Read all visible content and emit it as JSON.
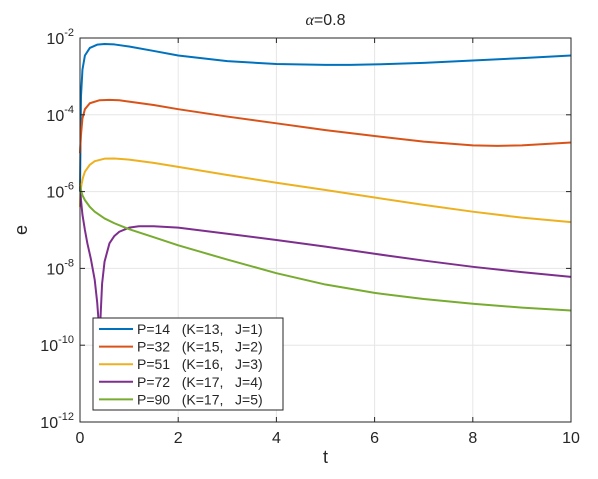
{
  "chart_data": {
    "type": "line",
    "title": "α=0.8",
    "xlabel": "t",
    "ylabel": "e",
    "xlim": [
      0,
      10
    ],
    "ylim": [
      1e-12,
      0.01
    ],
    "yscale": "log",
    "grid": true,
    "legend_position": "bottom-left",
    "x_ticks": [
      {
        "value": 0,
        "label": "0"
      },
      {
        "value": 2,
        "label": "2"
      },
      {
        "value": 4,
        "label": "4"
      },
      {
        "value": 6,
        "label": "6"
      },
      {
        "value": 8,
        "label": "8"
      },
      {
        "value": 10,
        "label": "10"
      }
    ],
    "y_ticks": [
      {
        "value": 1e-12,
        "base": "10",
        "exp": "-12"
      },
      {
        "value": 1e-10,
        "base": "10",
        "exp": "-10"
      },
      {
        "value": 1e-08,
        "base": "10",
        "exp": "-8"
      },
      {
        "value": 1e-06,
        "base": "10",
        "exp": "-6"
      },
      {
        "value": 0.0001,
        "base": "10",
        "exp": "-4"
      },
      {
        "value": 0.01,
        "base": "10",
        "exp": "-2"
      }
    ],
    "series": [
      {
        "name": "P=14   (K=13,   J=1)",
        "color": "#0072BD",
        "x": [
          0,
          0.02,
          0.05,
          0.1,
          0.2,
          0.35,
          0.5,
          0.7,
          1,
          1.5,
          2,
          3,
          4,
          5,
          5.5,
          6,
          7,
          8,
          9,
          10
        ],
        "y": [
          1e-06,
          0.0003,
          0.0015,
          0.0035,
          0.0055,
          0.0067,
          0.007,
          0.0068,
          0.006,
          0.0046,
          0.0035,
          0.0025,
          0.0021,
          0.002,
          0.002,
          0.00205,
          0.00225,
          0.0026,
          0.003,
          0.0035
        ]
      },
      {
        "name": "P=32   (K=15,   J=2)",
        "color": "#D95319",
        "x": [
          0,
          0.02,
          0.05,
          0.1,
          0.2,
          0.4,
          0.6,
          0.8,
          1,
          1.5,
          2,
          3,
          4,
          5,
          6,
          7,
          8,
          8.5,
          9,
          10
        ],
        "y": [
          1e-05,
          3e-05,
          8e-05,
          0.00014,
          0.0002,
          0.00024,
          0.000245,
          0.00024,
          0.00022,
          0.00018,
          0.00014,
          9e-05,
          6e-05,
          4e-05,
          2.8e-05,
          2e-05,
          1.6e-05,
          1.55e-05,
          1.6e-05,
          1.9e-05
        ]
      },
      {
        "name": "P=51   (K=16,   J=3)",
        "color": "#EDB120",
        "x": [
          0,
          0.01,
          0.03,
          0.06,
          0.1,
          0.2,
          0.3,
          0.5,
          0.7,
          1,
          1.5,
          2,
          3,
          4,
          5,
          6,
          7,
          8,
          9,
          10
        ],
        "y": [
          4e-07,
          1e-06,
          1.5e-06,
          2.3e-06,
          3.3e-06,
          5e-06,
          6.2e-06,
          7.2e-06,
          7.3e-06,
          6.8e-06,
          5.6e-06,
          4.4e-06,
          2.7e-06,
          1.7e-06,
          1.1e-06,
          7e-07,
          4.5e-07,
          3e-07,
          2.1e-07,
          1.6e-07
        ]
      },
      {
        "name": "P=72   (K=17,   J=4)",
        "color": "#7E2F8E",
        "x": [
          0,
          0.02,
          0.05,
          0.1,
          0.15,
          0.22,
          0.3,
          0.35,
          0.38,
          0.4,
          0.42,
          0.45,
          0.5,
          0.6,
          0.7,
          0.8,
          1,
          1.2,
          1.5,
          2,
          3,
          4,
          5,
          6,
          7,
          8,
          9,
          10
        ],
        "y": [
          1.5e-06,
          6e-07,
          2.5e-07,
          1e-07,
          4.5e-08,
          1.8e-08,
          5e-09,
          1.3e-09,
          4e-10,
          1.5e-10,
          6e-10,
          4e-09,
          1.5e-08,
          4.5e-08,
          7e-08,
          9e-08,
          1.15e-07,
          1.25e-07,
          1.25e-07,
          1.15e-07,
          8e-08,
          5.5e-08,
          3.7e-08,
          2.4e-08,
          1.6e-08,
          1.1e-08,
          8e-09,
          6e-09
        ]
      },
      {
        "name": "P=90   (K=17,   J=5)",
        "color": "#77AC30",
        "x": [
          0,
          0.02,
          0.05,
          0.1,
          0.2,
          0.3,
          0.5,
          0.7,
          1,
          1.5,
          2,
          2.5,
          3,
          4,
          5,
          6,
          7,
          8,
          9,
          10
        ],
        "y": [
          1.5e-06,
          1.1e-06,
          8e-07,
          6e-07,
          4e-07,
          3e-07,
          2e-07,
          1.5e-07,
          1.05e-07,
          6.5e-08,
          4e-08,
          2.6e-08,
          1.7e-08,
          7.5e-09,
          3.8e-09,
          2.3e-09,
          1.6e-09,
          1.2e-09,
          9.5e-10,
          8e-10
        ]
      }
    ]
  }
}
